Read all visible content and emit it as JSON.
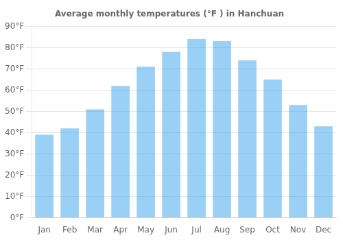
{
  "chart_data": {
    "type": "bar",
    "title": "Average monthly temperatures (°F ) in Hanchuan",
    "categories": [
      "Jan",
      "Feb",
      "Mar",
      "Apr",
      "May",
      "Jun",
      "Jul",
      "Aug",
      "Sep",
      "Oct",
      "Nov",
      "Dec"
    ],
    "values": [
      39,
      42,
      51,
      62,
      71,
      78,
      84,
      83,
      74,
      65,
      53,
      43
    ],
    "ylim": [
      0,
      90
    ],
    "yticks": [
      {
        "value": 0,
        "label": "0°F"
      },
      {
        "value": 10,
        "label": "10°F"
      },
      {
        "value": 20,
        "label": "20°F"
      },
      {
        "value": 30,
        "label": "30°F"
      },
      {
        "value": 40,
        "label": "40°F"
      },
      {
        "value": 50,
        "label": "50°F"
      },
      {
        "value": 60,
        "label": "60°F"
      },
      {
        "value": 70,
        "label": "70°F"
      },
      {
        "value": 80,
        "label": "80°F"
      },
      {
        "value": 90,
        "label": "90°F"
      }
    ],
    "grid": true
  }
}
